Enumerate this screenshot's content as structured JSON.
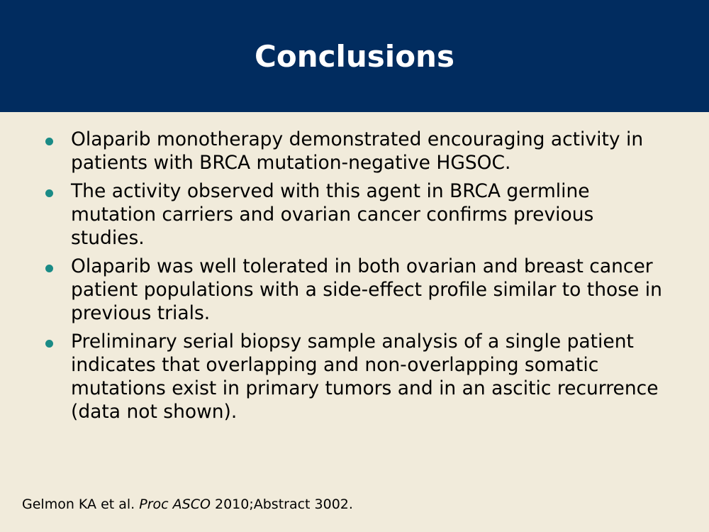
{
  "slide": {
    "title": "Conclusions",
    "bullets": [
      "Olaparib monotherapy demonstrated encouraging activity in patients with BRCA mutation-negative HGSOC.",
      "The activity observed with this agent in BRCA germline mutation carriers and ovarian cancer confirms previous studies.",
      "Olaparib was well tolerated in both ovarian and breast cancer patient populations with a side-effect profile similar to those in previous trials.",
      "Preliminary serial biopsy sample analysis of a single patient indicates that overlapping and non-overlapping somatic mutations exist in primary tumors and in an ascitic recurrence (data not shown)."
    ],
    "citation": {
      "authors": "Gelmon KA et al.",
      "journal": "Proc ASCO",
      "details": "2010;Abstract 3002."
    }
  },
  "colors": {
    "header_bg": "#012c5f",
    "body_bg": "#f1ebdb",
    "bullet_dot": "#1a8b86",
    "title_text": "#ffffff"
  }
}
